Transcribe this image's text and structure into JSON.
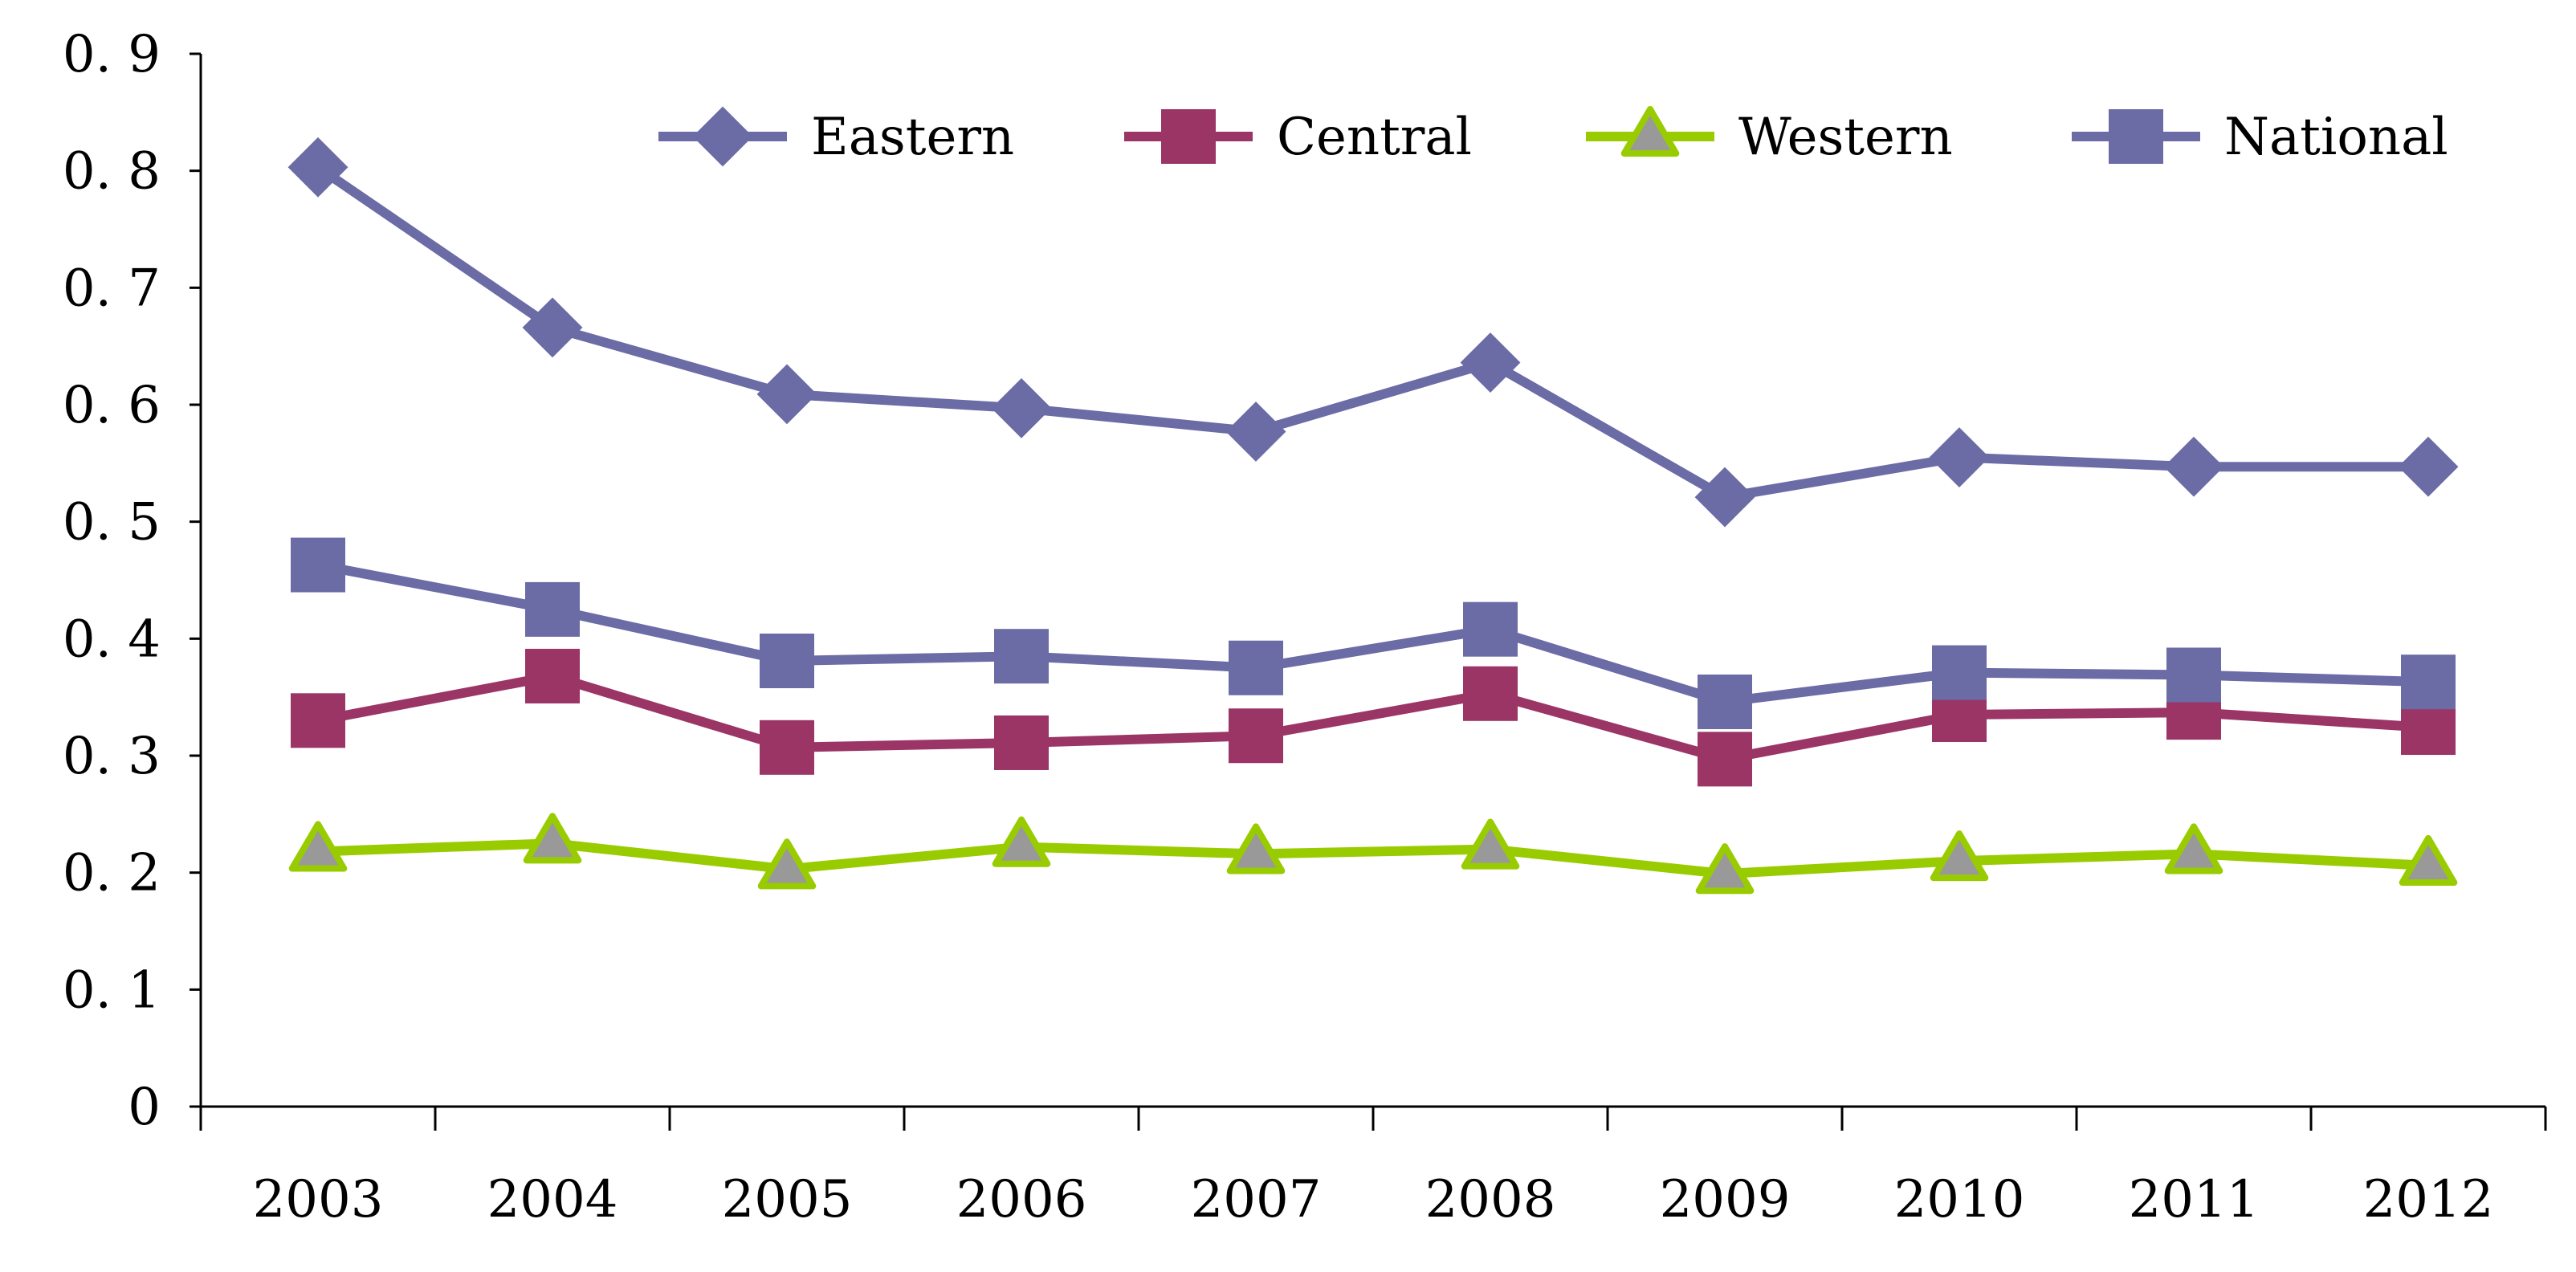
{
  "chart_data": {
    "type": "line",
    "title": "",
    "xlabel": "",
    "ylabel": "",
    "categories": [
      "2003",
      "2004",
      "2005",
      "2006",
      "2007",
      "2008",
      "2009",
      "2010",
      "2011",
      "2012"
    ],
    "ylim": [
      0,
      0.9
    ],
    "yticks": [
      "0",
      "0. 1",
      "0. 2",
      "0. 3",
      "0. 4",
      "0. 5",
      "0. 6",
      "0. 7",
      "0. 8",
      "0. 9"
    ],
    "yticks_values": [
      0,
      0.1,
      0.2,
      0.3,
      0.4,
      0.5,
      0.6,
      0.7,
      0.8,
      0.9
    ],
    "grid": false,
    "legend_position": "top",
    "series": [
      {
        "name": "Eastern",
        "marker": "diamond",
        "color": "#6b6ba6",
        "values": [
          0.803,
          0.666,
          0.609,
          0.597,
          0.577,
          0.636,
          0.521,
          0.555,
          0.547,
          0.547
        ]
      },
      {
        "name": "Central",
        "marker": "square",
        "color": "#9a3566",
        "values": [
          0.33,
          0.368,
          0.307,
          0.311,
          0.317,
          0.353,
          0.297,
          0.335,
          0.337,
          0.324
        ]
      },
      {
        "name": "Western",
        "marker": "triangle",
        "color": "#99cc00",
        "fill": "#999999",
        "values": [
          0.218,
          0.225,
          0.203,
          0.222,
          0.216,
          0.22,
          0.199,
          0.21,
          0.216,
          0.206
        ]
      },
      {
        "name": "National",
        "marker": "square",
        "color": "#6b6ba6",
        "values": [
          0.463,
          0.425,
          0.381,
          0.385,
          0.375,
          0.408,
          0.346,
          0.371,
          0.369,
          0.363
        ]
      }
    ]
  }
}
